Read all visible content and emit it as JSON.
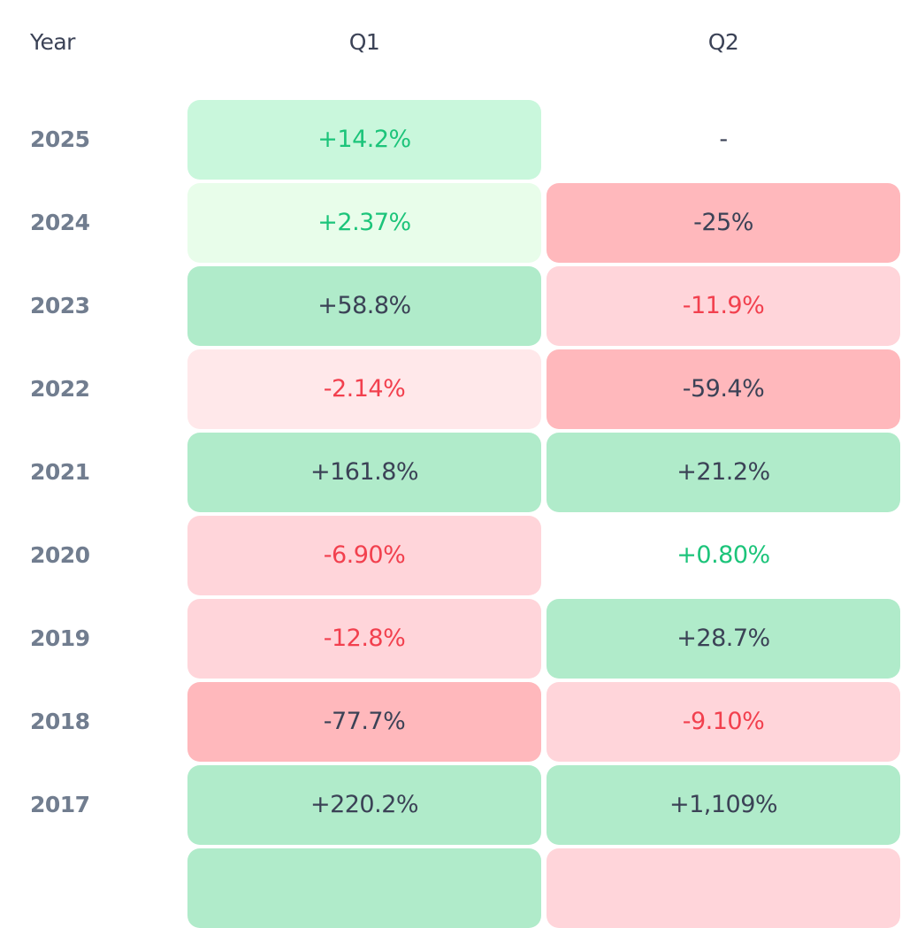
{
  "chart_data": {
    "type": "heatmap",
    "columns": [
      "Year",
      "Q1",
      "Q2"
    ],
    "rows": [
      {
        "year": "2025",
        "q1": {
          "text": "+14.2%",
          "value": 14.2,
          "tone": "pos-mid"
        },
        "q2": {
          "text": "-",
          "value": null,
          "tone": "none"
        }
      },
      {
        "year": "2024",
        "q1": {
          "text": "+2.37%",
          "value": 2.37,
          "tone": "pos-light"
        },
        "q2": {
          "text": "-25%",
          "value": -25,
          "tone": "neg-strong"
        }
      },
      {
        "year": "2023",
        "q1": {
          "text": "+58.8%",
          "value": 58.8,
          "tone": "pos-strong"
        },
        "q2": {
          "text": "-11.9%",
          "value": -11.9,
          "tone": "neg-mid"
        }
      },
      {
        "year": "2022",
        "q1": {
          "text": "-2.14%",
          "value": -2.14,
          "tone": "neg-light"
        },
        "q2": {
          "text": "-59.4%",
          "value": -59.4,
          "tone": "neg-strong"
        }
      },
      {
        "year": "2021",
        "q1": {
          "text": "+161.8%",
          "value": 161.8,
          "tone": "pos-strong"
        },
        "q2": {
          "text": "+21.2%",
          "value": 21.2,
          "tone": "pos-strong"
        }
      },
      {
        "year": "2020",
        "q1": {
          "text": "-6.90%",
          "value": -6.9,
          "tone": "neg-mid"
        },
        "q2": {
          "text": "+0.80%",
          "value": 0.8,
          "tone": "none-pos"
        }
      },
      {
        "year": "2019",
        "q1": {
          "text": "-12.8%",
          "value": -12.8,
          "tone": "neg-mid"
        },
        "q2": {
          "text": "+28.7%",
          "value": 28.7,
          "tone": "pos-strong"
        }
      },
      {
        "year": "2018",
        "q1": {
          "text": "-77.7%",
          "value": -77.7,
          "tone": "neg-strong"
        },
        "q2": {
          "text": "-9.10%",
          "value": -9.1,
          "tone": "neg-mid"
        }
      },
      {
        "year": "2017",
        "q1": {
          "text": "+220.2%",
          "value": 220.2,
          "tone": "pos-strong"
        },
        "q2": {
          "text": "+1,109%",
          "value": 1109,
          "tone": "pos-strong"
        }
      },
      {
        "year": "",
        "q1": {
          "text": "",
          "value": null,
          "tone": "pos-strong"
        },
        "q2": {
          "text": "",
          "value": null,
          "tone": "neg-mid"
        }
      }
    ],
    "colors": {
      "positive_text": "#1cc47a",
      "negative_text": "#f2404e",
      "neutral_text": "#3b4256",
      "pos_light": "#e8fdea",
      "pos_mid": "#c9f7dc",
      "pos_strong": "#b0ebca",
      "neg_light": "#ffe8ea",
      "neg_mid": "#ffd5da",
      "neg_strong": "#ffb8bc"
    }
  }
}
